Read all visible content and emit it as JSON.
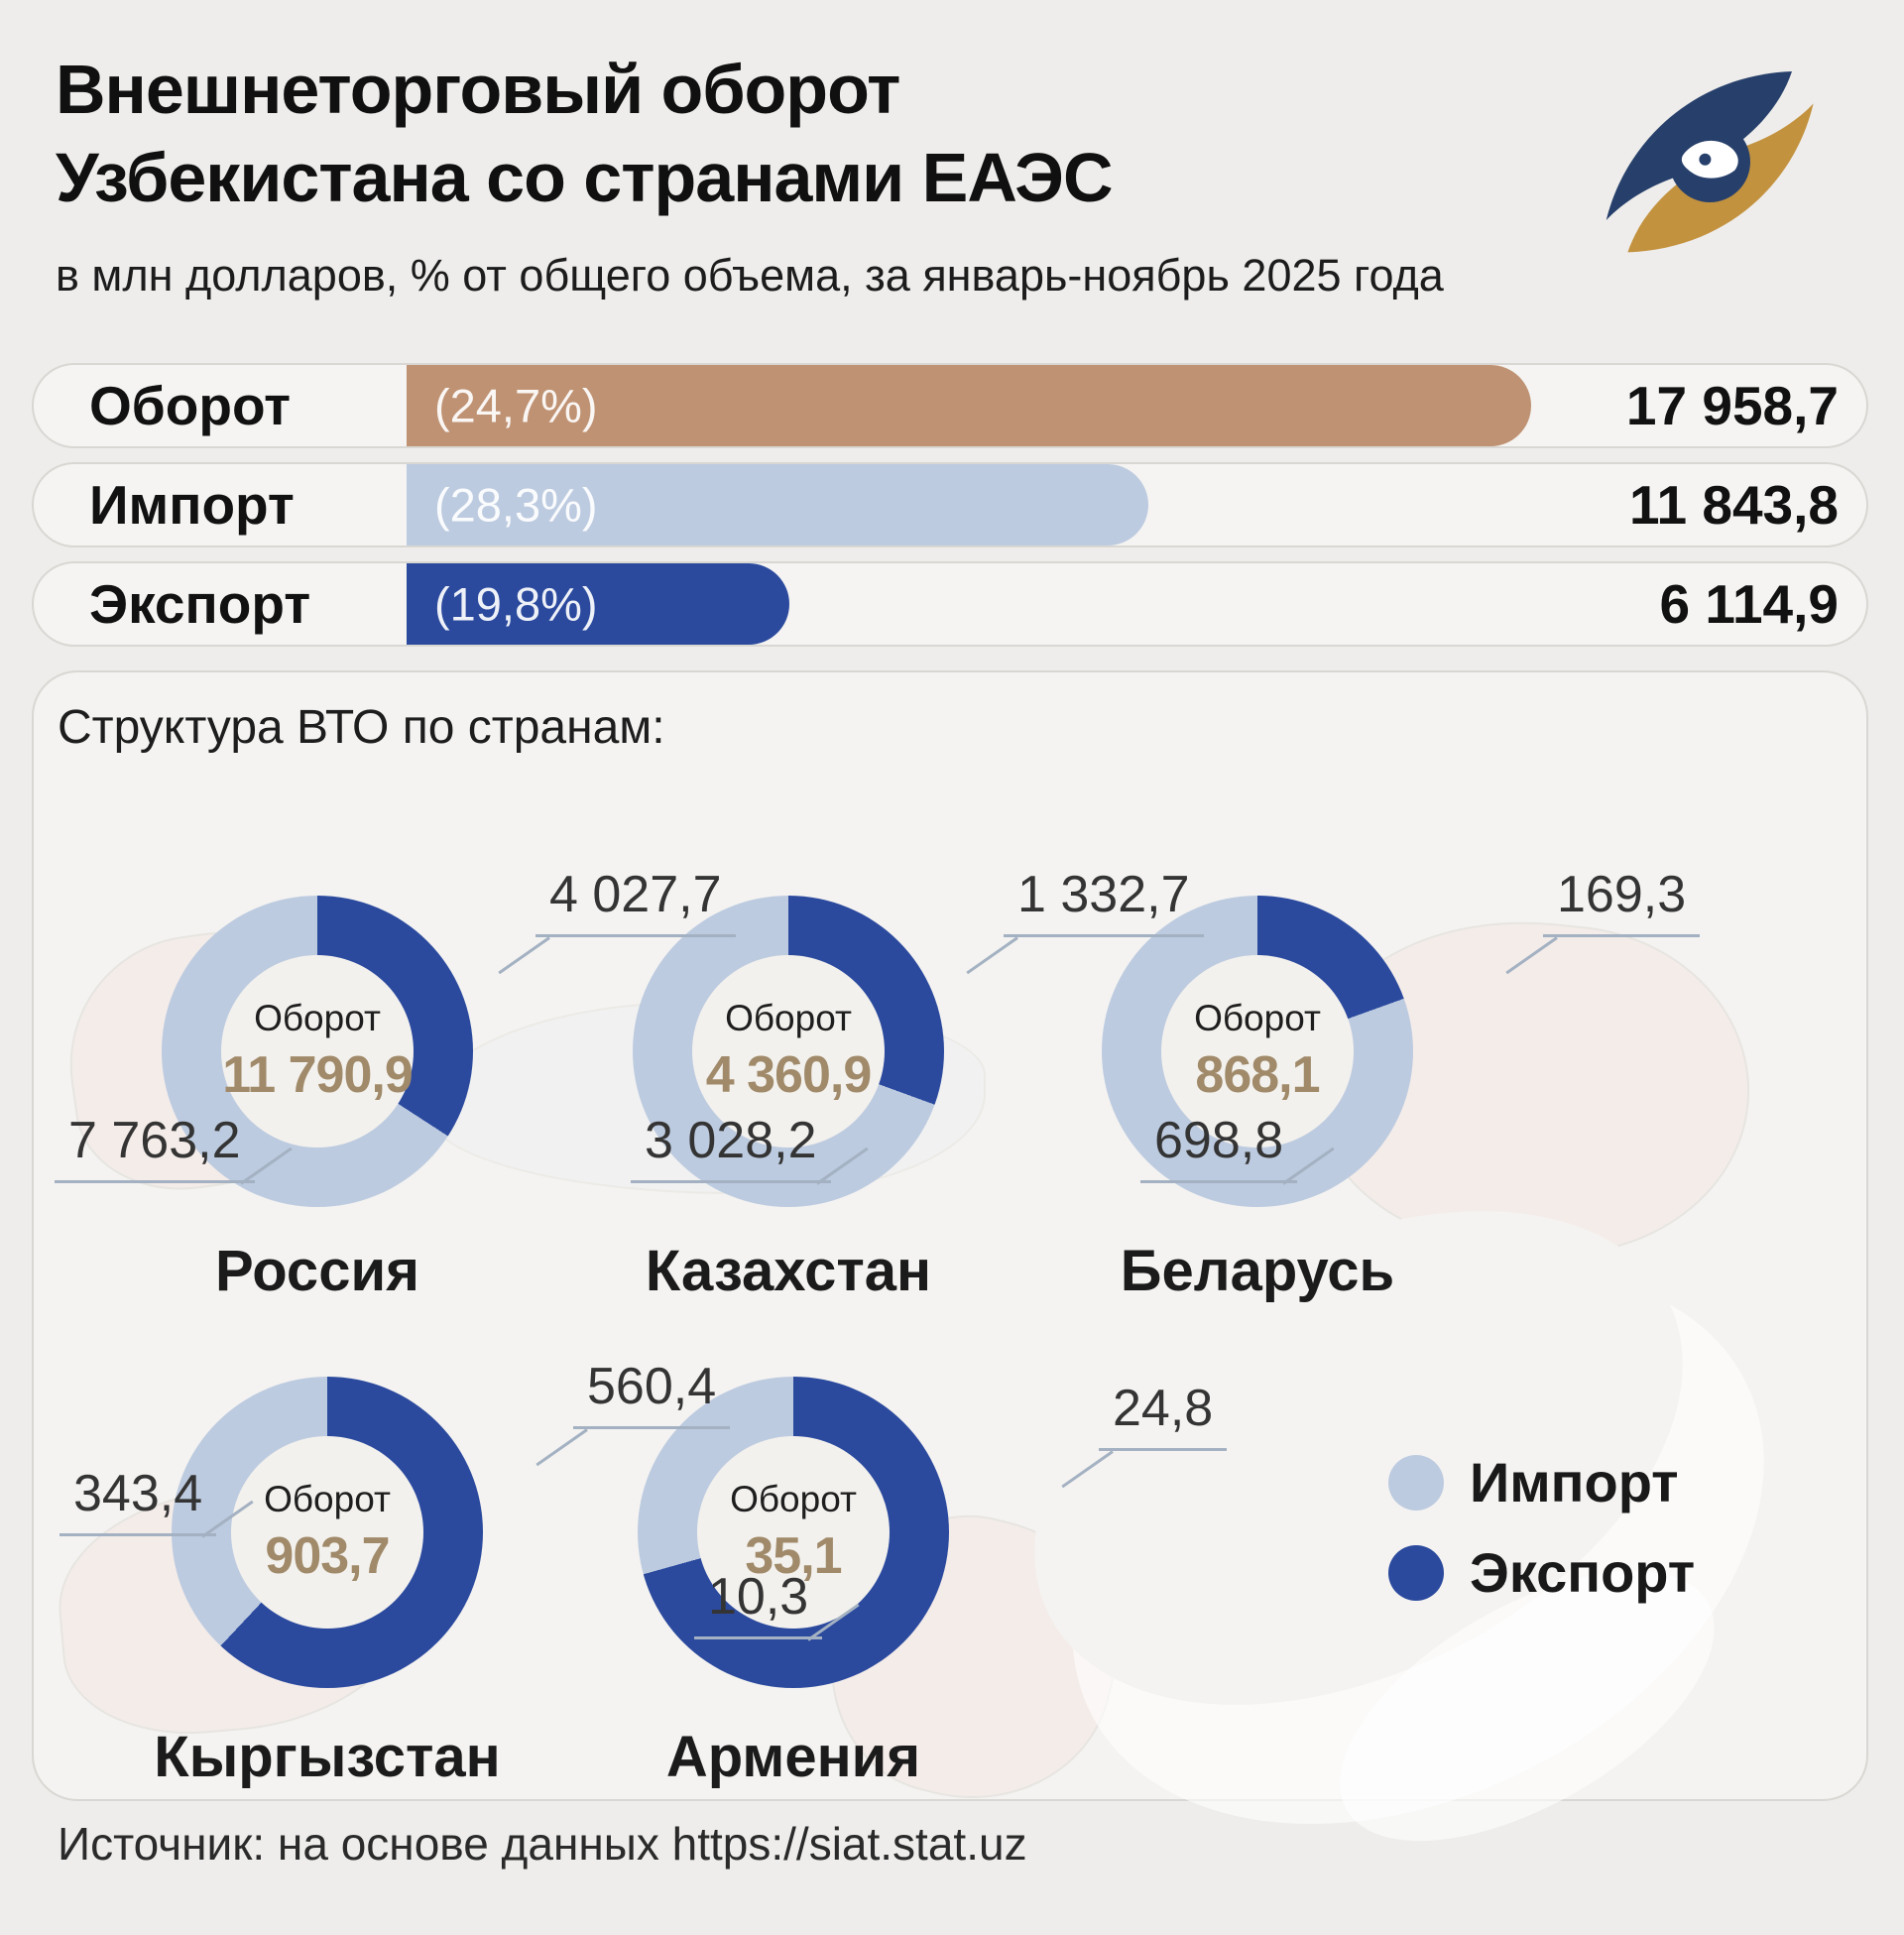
{
  "header": {
    "title_line1": "Внешнеторговый оборот",
    "title_line2": "Узбекистана со странами ЕАЭС",
    "subtitle": "в млн долларов, % от общего объема, за январь-ноябрь 2025 года"
  },
  "colors": {
    "turnover": "#bf9273",
    "import": "#bdcbe0",
    "export": "#2b4a9e",
    "center_value_text": "#a08a6a",
    "callout_line": "#a3b1c2"
  },
  "bars": [
    {
      "label": "Оборот",
      "percent": "(24,7%)",
      "value": "17 958,7",
      "value_num": 17958.7,
      "color_key": "turnover"
    },
    {
      "label": "Импорт",
      "percent": "(28,3%)",
      "value": "11 843,8",
      "value_num": 11843.8,
      "color_key": "import"
    },
    {
      "label": "Экспорт",
      "percent": "(19,8%)",
      "value": "6 114,9",
      "value_num": 6114.9,
      "color_key": "export"
    }
  ],
  "section": {
    "title": "Структура ВТО по странам:"
  },
  "center_label": "Оборот",
  "countries": [
    {
      "name": "Россия",
      "turnover": "11 790,9",
      "export": "4 027,7",
      "import": "7 763,2",
      "export_num": 4027.7,
      "import_num": 7763.2
    },
    {
      "name": "Казахстан",
      "turnover": "4 360,9",
      "export": "1 332,7",
      "import": "3 028,2",
      "export_num": 1332.7,
      "import_num": 3028.2
    },
    {
      "name": "Беларусь",
      "turnover": "868,1",
      "export": "169,3",
      "import": "698,8",
      "export_num": 169.3,
      "import_num": 698.8
    },
    {
      "name": "Кыргызстан",
      "turnover": "903,7",
      "export": "560,4",
      "import": "343,4",
      "export_num": 560.4,
      "import_num": 343.4
    },
    {
      "name": "Армения",
      "turnover": "35,1",
      "export": "24,8",
      "import": "10,3",
      "export_num": 24.8,
      "import_num": 10.3
    }
  ],
  "legend": [
    {
      "label": "Импорт",
      "color_key": "import"
    },
    {
      "label": "Экспорт",
      "color_key": "export"
    }
  ],
  "source": "Источник: на основе данных https://siat.stat.uz",
  "chart_data": [
    {
      "type": "bar",
      "title": "Внешнеторговый оборот Узбекистана со странами ЕАЭС",
      "subtitle": "в млн долларов, % от общего объема, за январь-ноябрь 2025 года",
      "categories": [
        "Оборот",
        "Импорт",
        "Экспорт"
      ],
      "values": [
        17958.7,
        11843.8,
        6114.9
      ],
      "share_of_total_percent": [
        24.7,
        28.3,
        19.8
      ],
      "orientation": "horizontal",
      "xlim": [
        0,
        23400
      ],
      "units": "млн долларов"
    },
    {
      "type": "pie",
      "title": "Структура ВТО по странам",
      "subtype": "donut",
      "legend": [
        "Импорт",
        "Экспорт"
      ],
      "legend_position": "bottom-right",
      "donuts": [
        {
          "country": "Россия",
          "turnover": 11790.9,
          "export": 4027.7,
          "import": 7763.2
        },
        {
          "country": "Казахстан",
          "turnover": 4360.9,
          "export": 1332.7,
          "import": 3028.2
        },
        {
          "country": "Беларусь",
          "turnover": 868.1,
          "export": 169.3,
          "import": 698.8
        },
        {
          "country": "Кыргызстан",
          "turnover": 903.7,
          "export": 560.4,
          "import": 343.4
        },
        {
          "country": "Армения",
          "turnover": 35.1,
          "export": 24.8,
          "import": 10.3
        }
      ]
    }
  ]
}
